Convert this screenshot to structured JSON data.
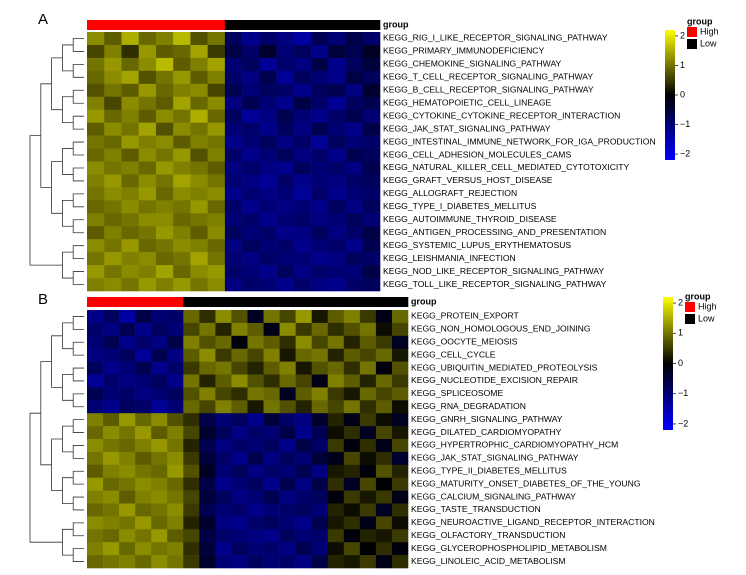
{
  "chart_data": [
    {
      "type": "heatmap",
      "panel_label": "A",
      "group_title": "group",
      "rows": [
        "KEGG_RIG_I_LIKE_RECEPTOR_SIGNALING_PATHWAY",
        "KEGG_PRIMARY_IMMUNODEFICIENCY",
        "KEGG_CHEMOKINE_SIGNALING_PATHWAY",
        "KEGG_T_CELL_RECEPTOR_SIGNALING_PATHWAY",
        "KEGG_B_CELL_RECEPTOR_SIGNALING_PATHWAY",
        "KEGG_HEMATOPOIETIC_CELL_LINEAGE",
        "KEGG_CYTOKINE_CYTOKINE_RECEPTOR_INTERACTION",
        "KEGG_JAK_STAT_SIGNALING_PATHWAY",
        "KEGG_INTESTINAL_IMMUNE_NETWORK_FOR_IGA_PRODUCTION",
        "KEGG_CELL_ADHESION_MOLECULES_CAMS",
        "KEGG_NATURAL_KILLER_CELL_MEDIATED_CYTOTOXICITY",
        "KEGG_GRAFT_VERSUS_HOST_DISEASE",
        "KEGG_ALLOGRAFT_REJECTION",
        "KEGG_TYPE_I_DIABETES_MELLITUS",
        "KEGG_AUTOIMMUNE_THYROID_DISEASE",
        "KEGG_ANTIGEN_PROCESSING_AND_PRESENTATION",
        "KEGG_SYSTEMIC_LUPUS_ERYTHEMATOSUS",
        "KEGG_LEISHMANIA_INFECTION",
        "KEGG_NOD_LIKE_RECEPTOR_SIGNALING_PATHWAY",
        "KEGG_TOLL_LIKE_RECEPTOR_SIGNALING_PATHWAY"
      ],
      "column_groups": [
        "High",
        "High",
        "High",
        "High",
        "High",
        "High",
        "High",
        "High",
        "Low",
        "Low",
        "Low",
        "Low",
        "Low",
        "Low",
        "Low",
        "Low",
        "Low"
      ],
      "values": [
        [
          1.2,
          0.8,
          1.5,
          0.9,
          1.1,
          1.6,
          0.7,
          1.0,
          -0.8,
          -1.2,
          -0.9,
          -1.1,
          -1.4,
          -0.7,
          -1.0,
          -0.6,
          -0.9
        ],
        [
          0.6,
          1.1,
          0.4,
          1.3,
          0.8,
          0.9,
          1.4,
          0.5,
          -0.6,
          -0.9,
          -0.4,
          -1.0,
          -0.8,
          -1.2,
          -0.5,
          -0.7,
          -0.3
        ],
        [
          1.0,
          1.3,
          0.9,
          1.2,
          1.6,
          0.8,
          1.1,
          1.4,
          -1.0,
          -0.8,
          -1.3,
          -0.9,
          -1.1,
          -0.6,
          -1.2,
          -0.8,
          -0.5
        ],
        [
          0.9,
          1.2,
          1.4,
          0.7,
          1.0,
          1.3,
          0.8,
          1.1,
          -0.9,
          -1.1,
          -0.7,
          -1.3,
          -0.8,
          -1.0,
          -1.2,
          -0.6,
          -0.8
        ],
        [
          0.7,
          1.0,
          0.8,
          1.3,
          0.9,
          1.1,
          1.2,
          0.6,
          -0.7,
          -1.0,
          -0.8,
          -0.9,
          -1.2,
          -0.8,
          -0.7,
          -1.1,
          -0.4
        ],
        [
          1.1,
          0.6,
          1.2,
          1.0,
          0.8,
          1.4,
          0.9,
          1.2,
          -1.1,
          -0.7,
          -1.0,
          -1.2,
          -0.6,
          -0.9,
          -1.3,
          -0.8,
          -0.7
        ],
        [
          1.3,
          0.9,
          1.1,
          0.8,
          1.2,
          1.0,
          1.5,
          0.9,
          -0.8,
          -1.3,
          -1.1,
          -0.7,
          -1.0,
          -1.2,
          -0.9,
          -0.7,
          -1.0
        ],
        [
          0.8,
          1.2,
          1.0,
          1.4,
          0.7,
          1.2,
          1.0,
          1.3,
          -1.0,
          -0.9,
          -1.2,
          -0.8,
          -1.1,
          -0.7,
          -1.0,
          -1.2,
          -0.6
        ],
        [
          1.0,
          0.9,
          1.3,
          1.1,
          1.2,
          0.8,
          1.1,
          1.0,
          -1.2,
          -1.0,
          -0.8,
          -1.1,
          -0.9,
          -1.3,
          -0.8,
          -1.0,
          -0.9
        ],
        [
          0.9,
          1.1,
          0.8,
          1.2,
          1.0,
          1.3,
          0.7,
          1.1,
          -0.9,
          -1.2,
          -1.0,
          -0.8,
          -1.1,
          -0.9,
          -1.2,
          -0.7,
          -0.8
        ],
        [
          1.2,
          1.0,
          1.1,
          0.9,
          1.3,
          1.1,
          1.0,
          0.8,
          -1.1,
          -0.9,
          -1.1,
          -1.2,
          -0.8,
          -1.0,
          -0.9,
          -1.1,
          -0.7
        ],
        [
          1.1,
          1.3,
          0.9,
          1.2,
          1.0,
          1.4,
          1.2,
          1.0,
          -1.0,
          -1.1,
          -1.3,
          -0.9,
          -1.2,
          -1.0,
          -1.1,
          -0.9,
          -0.8
        ],
        [
          1.0,
          1.2,
          1.1,
          1.3,
          0.9,
          1.2,
          1.1,
          1.2,
          -1.2,
          -1.0,
          -1.1,
          -1.0,
          -1.3,
          -0.9,
          -1.2,
          -1.0,
          -0.9
        ],
        [
          0.9,
          1.0,
          1.2,
          1.0,
          1.1,
          1.0,
          1.3,
          0.9,
          -0.9,
          -1.2,
          -1.0,
          -1.1,
          -1.0,
          -1.2,
          -0.8,
          -1.1,
          -0.8
        ],
        [
          1.1,
          0.9,
          1.0,
          1.2,
          1.2,
          0.9,
          1.0,
          1.1,
          -1.0,
          -0.9,
          -1.2,
          -1.0,
          -0.9,
          -1.1,
          -1.0,
          -0.8,
          -1.0
        ],
        [
          0.8,
          1.1,
          0.9,
          1.0,
          1.3,
          1.1,
          0.8,
          1.2,
          -0.8,
          -1.0,
          -0.9,
          -1.2,
          -1.1,
          -0.8,
          -1.1,
          -0.9,
          -0.6
        ],
        [
          1.2,
          1.0,
          1.3,
          0.9,
          1.0,
          1.2,
          1.1,
          0.9,
          -1.1,
          -0.8,
          -1.0,
          -0.9,
          -1.2,
          -1.0,
          -0.9,
          -1.2,
          -0.7
        ],
        [
          1.0,
          1.3,
          1.1,
          1.2,
          0.9,
          1.0,
          1.4,
          1.0,
          -1.0,
          -1.1,
          -0.9,
          -1.0,
          -1.0,
          -1.2,
          -1.1,
          -0.8,
          -0.9
        ],
        [
          1.3,
          1.0,
          1.2,
          1.1,
          1.4,
          0.9,
          1.2,
          1.3,
          -0.9,
          -1.0,
          -1.2,
          -0.8,
          -1.1,
          -0.9,
          -1.0,
          -1.0,
          -0.6
        ],
        [
          1.1,
          1.2,
          1.0,
          1.3,
          1.1,
          1.3,
          1.0,
          1.2,
          -1.1,
          -0.9,
          -1.0,
          -1.2,
          -0.9,
          -1.1,
          -1.2,
          -0.9,
          -0.8
        ]
      ],
      "colorlim": [
        -2.2,
        2.2
      ],
      "colors": [
        "#0000ff",
        "#000000",
        "#ffff00"
      ],
      "colorbar_ticks": [
        2,
        1,
        0,
        {
          "value": -1,
          "label": "−1"
        },
        {
          "value": -2,
          "label": "−2"
        }
      ],
      "legend": {
        "title": "group",
        "entries": [
          {
            "name": "High",
            "color": "#ff0000"
          },
          {
            "name": "Low",
            "color": "#000000"
          }
        ]
      }
    },
    {
      "type": "heatmap",
      "panel_label": "B",
      "group_title": "group",
      "rows": [
        "KEGG_PROTEIN_EXPORT",
        "KEGG_NON_HOMOLOGOUS_END_JOINING",
        "KEGG_OOCYTE_MEIOSIS",
        "KEGG_CELL_CYCLE",
        "KEGG_UBIQUITIN_MEDIATED_PROTEOLYSIS",
        "KEGG_NUCLEOTIDE_EXCISION_REPAIR",
        "KEGG_SPLICEOSOME",
        "KEGG_RNA_DEGRADATION",
        "KEGG_GNRH_SIGNALING_PATHWAY",
        "KEGG_DILATED_CARDIOMYOPATHY",
        "KEGG_HYPERTROPHIC_CARDIOMYOPATHY_HCM",
        "KEGG_JAK_STAT_SIGNALING_PATHWAY",
        "KEGG_TYPE_II_DIABETES_MELLITUS",
        "KEGG_MATURITY_ONSET_DIABETES_OF_THE_YOUNG",
        "KEGG_CALCIUM_SIGNALING_PATHWAY",
        "KEGG_TASTE_TRANSDUCTION",
        "KEGG_NEUROACTIVE_LIGAND_RECEPTOR_INTERACTION",
        "KEGG_OLFACTORY_TRANSDUCTION",
        "KEGG_GLYCEROPHOSPHOLIPID_METABOLISM",
        "KEGG_LINOLEIC_ACID_METABOLISM"
      ],
      "column_groups": [
        "High",
        "High",
        "High",
        "High",
        "High",
        "High",
        "Low",
        "Low",
        "Low",
        "Low",
        "Low",
        "Low",
        "Low",
        "Low",
        "Low",
        "Low",
        "Low",
        "Low",
        "Low",
        "Low"
      ],
      "values": [
        [
          -1.2,
          -0.8,
          -1.4,
          -0.6,
          -1.0,
          -0.9,
          0.9,
          0.4,
          1.2,
          0.7,
          -0.3,
          1.0,
          0.6,
          1.3,
          0.2,
          0.8,
          1.1,
          0.5,
          -0.2,
          0.9
        ],
        [
          -0.9,
          -1.1,
          -0.7,
          -1.2,
          -0.8,
          -1.0,
          0.6,
          1.0,
          0.3,
          1.1,
          0.8,
          -0.2,
          1.2,
          0.5,
          0.9,
          0.4,
          0.7,
          1.0,
          0.1,
          0.6
        ],
        [
          -1.0,
          -0.7,
          -1.2,
          -0.9,
          -1.1,
          -0.6,
          1.1,
          0.7,
          0.9,
          -0.1,
          1.0,
          0.8,
          0.4,
          1.2,
          0.6,
          1.0,
          0.3,
          0.8,
          0.5,
          -0.3
        ],
        [
          -1.1,
          -1.0,
          -0.8,
          -1.3,
          -0.7,
          -1.1,
          0.8,
          1.2,
          0.5,
          0.9,
          0.6,
          1.1,
          0.2,
          0.9,
          1.0,
          0.3,
          0.8,
          0.6,
          0.9,
          0.2
        ],
        [
          -0.8,
          -1.2,
          -1.0,
          -0.7,
          -1.2,
          -0.9,
          0.5,
          0.9,
          1.0,
          0.6,
          0.3,
          0.8,
          1.1,
          0.2,
          0.7,
          0.9,
          0.4,
          1.0,
          -0.1,
          0.7
        ],
        [
          -1.3,
          -0.9,
          -1.1,
          -1.0,
          -0.8,
          -1.2,
          1.0,
          0.3,
          0.8,
          1.2,
          0.7,
          0.4,
          0.9,
          0.6,
          -0.2,
          1.1,
          0.8,
          0.3,
          0.9,
          0.5
        ],
        [
          -0.7,
          -1.0,
          -0.9,
          -1.1,
          -1.0,
          -0.8,
          0.7,
          1.1,
          0.6,
          0.4,
          1.0,
          0.9,
          -0.3,
          0.8,
          1.1,
          0.5,
          0.2,
          0.9,
          0.6,
          0.8
        ],
        [
          -1.0,
          -1.2,
          -0.8,
          -0.9,
          -1.3,
          -1.0,
          0.9,
          0.6,
          1.1,
          0.8,
          0.2,
          1.0,
          0.7,
          0.3,
          0.9,
          0.6,
          1.0,
          0.4,
          0.8,
          0.1
        ],
        [
          1.1,
          0.8,
          1.3,
          0.9,
          1.2,
          0.7,
          0.4,
          -0.6,
          -1.0,
          -0.8,
          -1.2,
          -0.5,
          -0.9,
          -1.1,
          -0.4,
          0.3,
          -0.2,
          0.5,
          0.1,
          -0.3
        ],
        [
          0.9,
          1.2,
          1.0,
          1.3,
          0.8,
          1.1,
          0.6,
          -0.4,
          -0.8,
          -1.1,
          -0.9,
          -1.0,
          -0.6,
          -1.2,
          -0.7,
          0.1,
          0.4,
          -0.3,
          0.6,
          0.2
        ],
        [
          1.2,
          1.0,
          0.9,
          1.1,
          1.3,
          1.0,
          0.3,
          -0.7,
          -1.1,
          -0.9,
          -1.0,
          -0.8,
          -1.2,
          -0.6,
          -0.9,
          0.5,
          -0.1,
          0.4,
          -0.2,
          0.6
        ],
        [
          1.0,
          1.3,
          1.1,
          0.8,
          1.0,
          1.2,
          0.5,
          -0.5,
          -0.9,
          -1.2,
          -0.7,
          -1.1,
          -0.8,
          -1.0,
          -0.5,
          -0.2,
          0.6,
          0.1,
          0.4,
          -0.4
        ],
        [
          0.8,
          1.1,
          1.2,
          1.0,
          0.9,
          1.3,
          0.7,
          -0.3,
          -1.0,
          -0.8,
          -1.1,
          -0.9,
          -1.0,
          -0.7,
          -1.1,
          0.2,
          0.3,
          -0.1,
          0.7,
          0.3
        ],
        [
          1.3,
          0.9,
          1.0,
          1.2,
          1.1,
          0.9,
          0.4,
          -0.6,
          -1.2,
          -1.0,
          -0.8,
          -1.2,
          -0.7,
          -1.1,
          -0.6,
          0.4,
          -0.3,
          0.6,
          0.0,
          0.5
        ],
        [
          1.1,
          1.2,
          0.8,
          1.1,
          1.2,
          1.0,
          0.6,
          -0.5,
          -0.8,
          -1.1,
          -1.0,
          -0.7,
          -1.1,
          -0.9,
          -0.8,
          -0.1,
          0.5,
          0.2,
          0.5,
          -0.2
        ],
        [
          0.9,
          1.0,
          1.3,
          0.9,
          1.0,
          1.2,
          0.5,
          -0.7,
          -1.0,
          -0.9,
          -1.2,
          -1.0,
          -0.9,
          -0.8,
          -1.0,
          0.3,
          0.1,
          0.5,
          -0.3,
          0.4
        ],
        [
          1.2,
          1.1,
          1.0,
          1.3,
          0.9,
          1.1,
          0.3,
          -0.4,
          -1.1,
          -1.2,
          -0.9,
          -0.8,
          -1.0,
          -1.2,
          -0.7,
          0.2,
          0.4,
          -0.2,
          0.6,
          0.1
        ],
        [
          1.0,
          0.9,
          1.2,
          1.0,
          1.3,
          0.8,
          0.6,
          -0.6,
          -0.9,
          -1.0,
          -1.1,
          -1.2,
          -0.8,
          -1.0,
          -0.9,
          0.5,
          -0.1,
          0.3,
          0.2,
          0.5
        ],
        [
          1.1,
          1.3,
          0.9,
          1.2,
          1.0,
          1.1,
          0.4,
          -0.5,
          -1.2,
          -0.8,
          -1.0,
          -0.9,
          -1.1,
          -0.7,
          -1.0,
          0.1,
          0.6,
          0.0,
          0.4,
          -0.1
        ],
        [
          0.9,
          1.0,
          1.1,
          0.9,
          1.2,
          1.0,
          0.5,
          -0.4,
          -1.0,
          -1.1,
          -0.8,
          -1.0,
          -0.9,
          -1.1,
          -0.6,
          0.3,
          0.2,
          0.5,
          -0.2,
          0.4
        ]
      ],
      "colorlim": [
        -2.2,
        2.2
      ],
      "colors": [
        "#0000ff",
        "#000000",
        "#ffff00"
      ],
      "colorbar_ticks": [
        2,
        1,
        0,
        {
          "value": -1,
          "label": "−1"
        },
        {
          "value": -2,
          "label": "−2"
        }
      ],
      "legend": {
        "title": "group",
        "entries": [
          {
            "name": "High",
            "color": "#ff0000"
          },
          {
            "name": "Low",
            "color": "#000000"
          }
        ]
      }
    }
  ]
}
